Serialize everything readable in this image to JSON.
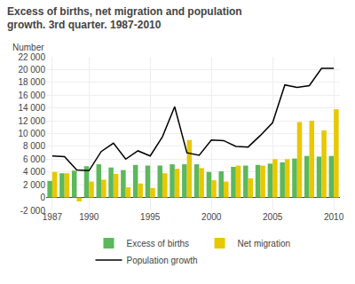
{
  "chart_data": {
    "type": "bar",
    "title": "Excess of births, net migration and population growth. 3rd quarter. 1987-2010",
    "ylabel": "Number",
    "categories": [
      "1987",
      null,
      null,
      "1990",
      null,
      null,
      null,
      null,
      "1995",
      null,
      null,
      null,
      null,
      "2000",
      null,
      null,
      null,
      null,
      "2005",
      null,
      null,
      null,
      null,
      "2010"
    ],
    "series": [
      {
        "name": "Excess of births",
        "type": "bar",
        "color": "#5cb85c",
        "values": [
          2600,
          3800,
          4200,
          4900,
          5200,
          4700,
          4300,
          5100,
          5000,
          5000,
          5200,
          5200,
          5200,
          4000,
          4100,
          4800,
          5000,
          5100,
          5300,
          5500,
          6100,
          6500,
          6400,
          6500
        ]
      },
      {
        "name": "Net migration",
        "type": "bar",
        "color": "#e8c800",
        "values": [
          4000,
          3800,
          -600,
          2500,
          2800,
          3700,
          1600,
          2200,
          1500,
          3800,
          4500,
          9000,
          4600,
          2700,
          2500,
          5000,
          3000,
          5000,
          6000,
          6000,
          11800,
          12000,
          10500,
          13800
        ]
      },
      {
        "name": "Population growth",
        "type": "line",
        "color": "#000000",
        "values": [
          6500,
          6400,
          4300,
          4200,
          7200,
          8500,
          6000,
          7300,
          6500,
          9500,
          14200,
          7000,
          6600,
          9000,
          8900,
          8000,
          7900,
          9700,
          11700,
          17600,
          17200,
          17500,
          20200,
          20200
        ]
      }
    ],
    "ylim": [
      -2000,
      22000
    ],
    "yticks": [
      {
        "value": -2000,
        "label": "-2 000"
      },
      0,
      {
        "value": 2000,
        "label": "2 000"
      },
      {
        "value": 4000,
        "label": "4 000"
      },
      {
        "value": 6000,
        "label": "6 000"
      },
      {
        "value": 8000,
        "label": "8 000"
      },
      {
        "value": 10000,
        "label": "10 000"
      },
      {
        "value": 12000,
        "label": "12 000"
      },
      {
        "value": 14000,
        "label": "14 000"
      },
      {
        "value": 16000,
        "label": "16 000"
      },
      {
        "value": 18000,
        "label": "18 000"
      },
      {
        "value": 20000,
        "label": "20 000"
      },
      {
        "value": 22000,
        "label": "22 000"
      }
    ],
    "grid": true,
    "legend": "bottom"
  }
}
